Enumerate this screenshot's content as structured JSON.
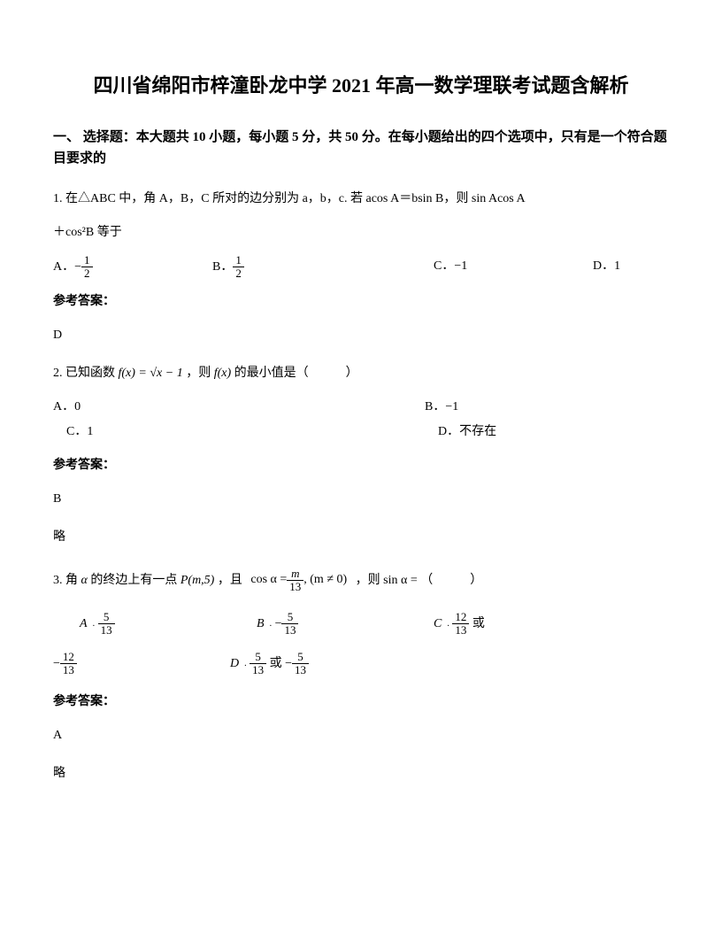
{
  "title": "四川省绵阳市梓潼卧龙中学 2021 年高一数学理联考试题含解析",
  "section_header": "一、 选择题：本大题共 10 小题，每小题 5 分，共 50 分。在每小题给出的四个选项中，只有是一个符合题目要求的",
  "q1": {
    "text_1": "1. 在△ABC 中，角 A，B，C 所对的边分别为 a，b，c. 若 acos A＝bsin B，则 sin Acos A",
    "text_2": "＋cos²B 等于",
    "opt_a_prefix": "A．−",
    "opt_a_num": "1",
    "opt_a_den": "2",
    "opt_b_prefix": "B．",
    "opt_b_num": "1",
    "opt_b_den": "2",
    "opt_c": "C．−1",
    "opt_d": "D．1",
    "answer_label": "参考答案：",
    "answer": "D"
  },
  "q2": {
    "text_1": "2. 已知函数",
    "formula_1": "f(x) = √x − 1",
    "text_2": "，则",
    "formula_2": "f(x)",
    "text_3": "的最小值是（　　　）",
    "opt_a": "A．0",
    "opt_b": "B．−1",
    "opt_c": "C．1",
    "opt_d": "D．不存在",
    "answer_label": "参考答案：",
    "answer": "B",
    "brief": "略"
  },
  "q3": {
    "text_1": "3. 角",
    "alpha": "α",
    "text_2": "的终边上有一点",
    "point": "P(m,5)",
    "text_3": "，且",
    "cos_formula_pre": "cos α = ",
    "cos_num": "m",
    "cos_den": "13",
    "cos_cond": ", (m ≠ 0)",
    "text_4": "，则",
    "sin_formula": "sin α =",
    "text_5": "（　　　）",
    "opt_a_label": "A",
    "opt_a_num": "5",
    "opt_a_den": "13",
    "opt_b_label": "B",
    "opt_b_num": "5",
    "opt_b_den": "13",
    "opt_c_label": "C",
    "opt_c_num": "12",
    "opt_c_den": "13",
    "opt_c_or": "或",
    "opt_c2_num": "12",
    "opt_c2_den": "13",
    "opt_d_label": "D",
    "opt_d1_num": "5",
    "opt_d1_den": "13",
    "opt_d_or": "或",
    "opt_d2_num": "5",
    "opt_d2_den": "13",
    "answer_label": "参考答案：",
    "answer": "A",
    "brief": "略"
  }
}
